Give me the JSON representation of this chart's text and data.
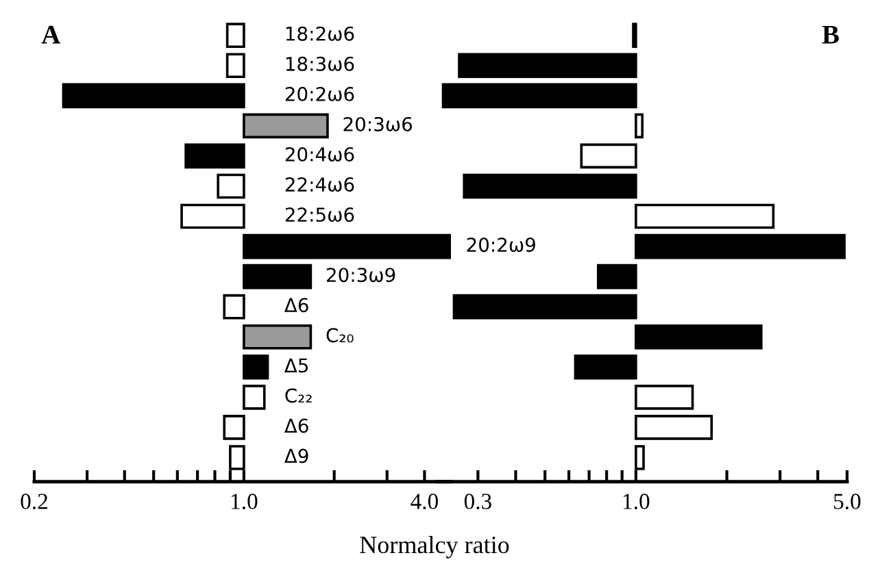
{
  "chart_data": [
    {
      "type": "bar",
      "orientation": "horizontal",
      "title": "A",
      "xlabel": "Normalcy ratio",
      "log": "x",
      "categories": [
        "18:2ω6",
        "18:3ω6",
        "20:2ω6",
        "20:3ω6",
        "20:4ω6",
        "22:4ω6",
        "22:5ω6",
        "20:2ω9",
        "20:3ω9",
        "Δ6",
        "C₂₀",
        "Δ5",
        "C₂₂",
        "Δ6",
        "Δ9"
      ],
      "base": [
        1,
        1,
        1,
        1,
        1,
        1,
        1,
        1,
        1,
        1,
        1,
        1,
        1,
        1,
        1
      ],
      "values": [
        -0.12,
        -0.12,
        -0.75,
        0.9,
        -0.36,
        -0.18,
        -0.38,
        3.9,
        0.67,
        -0.14,
        0.67,
        0.2,
        0.17,
        -0.14,
        -0.1
      ],
      "colors": [
        "#ffffff",
        "#ffffff",
        "#000000",
        "#9a9a9a",
        "#000000",
        "#ffffff",
        "#ffffff",
        "#000000",
        "#000000",
        "#ffffff",
        "#9a9a9a",
        "#000000",
        "#ffffff",
        "#ffffff",
        "#ffffff"
      ],
      "xlim": [
        0.2,
        4.9
      ],
      "xticks": [
        0.2,
        {
          "value": 0.3,
          "label": null
        },
        {
          "value": 0.4,
          "label": null
        },
        {
          "value": 0.5,
          "label": null
        },
        {
          "value": 0.6,
          "label": null
        },
        {
          "value": 0.7,
          "label": null
        },
        {
          "value": 0.8,
          "label": null
        },
        {
          "value": 0.9,
          "label": null
        },
        {
          "value": 1,
          "label": "1.0"
        },
        {
          "value": 2,
          "label": null
        },
        {
          "value": 3,
          "label": null
        },
        {
          "value": 4,
          "label": "4.0"
        }
      ],
      "grid": false,
      "legend": false
    },
    {
      "type": "bar",
      "orientation": "horizontal",
      "title": "B",
      "log": "x",
      "categories": [
        null,
        null,
        null,
        null,
        null,
        null,
        null,
        null,
        null,
        null,
        null,
        null,
        null,
        null,
        null
      ],
      "base": [
        1,
        1,
        1,
        1,
        1,
        1,
        1,
        1,
        1,
        1,
        1,
        1,
        1,
        1,
        1
      ],
      "values": [
        -0.02,
        -0.74,
        -0.77,
        0.05,
        -0.34,
        -0.73,
        1.85,
        3.9,
        -0.25,
        -0.75,
        1.6,
        -0.37,
        0.54,
        0.78,
        0.06
      ],
      "colors": [
        "#000000",
        "#000000",
        "#000000",
        "#ffffff",
        "#ffffff",
        "#000000",
        "#ffffff",
        "#000000",
        "#000000",
        "#000000",
        "#000000",
        "#000000",
        "#ffffff",
        "#ffffff",
        "#ffffff"
      ],
      "xlim": [
        0.22,
        5.0
      ],
      "xticks": [
        0.3,
        {
          "value": 0.4,
          "label": null
        },
        {
          "value": 0.5,
          "label": null
        },
        {
          "value": 0.6,
          "label": null
        },
        {
          "value": 0.7,
          "label": null
        },
        {
          "value": 0.8,
          "label": null
        },
        {
          "value": 0.9,
          "label": null
        },
        {
          "value": 1,
          "label": "1.0"
        },
        {
          "value": 2,
          "label": null
        },
        {
          "value": 3,
          "label": null
        },
        {
          "value": 4,
          "label": null
        },
        {
          "value": 5,
          "label": "5.0"
        }
      ],
      "grid": false,
      "legend": false
    }
  ]
}
